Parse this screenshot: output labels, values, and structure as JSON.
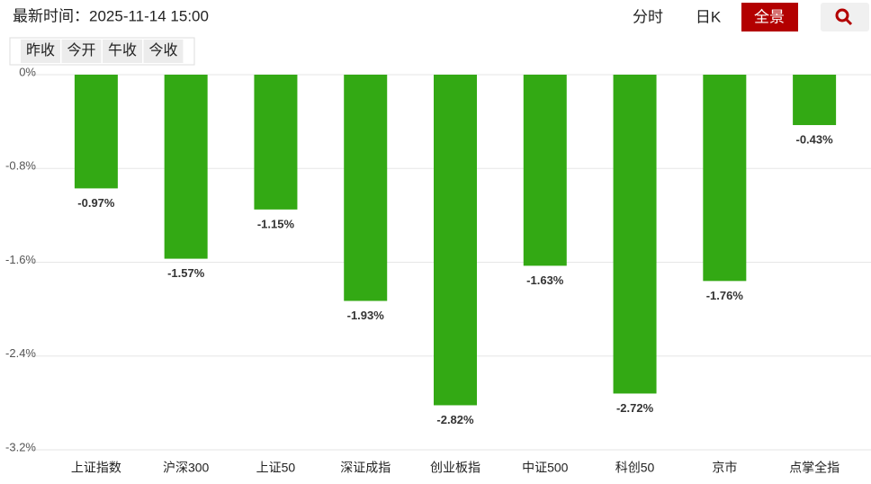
{
  "header": {
    "time": "最新时间：2025-11-14 15:00",
    "tabs": [
      "分时",
      "日K",
      "全景"
    ],
    "active_tab": 2,
    "sub_tabs": [
      "昨收",
      "今开",
      "午收",
      "今收"
    ]
  },
  "chart_data": {
    "type": "bar",
    "categories": [
      "上证指数",
      "沪深300",
      "上证50",
      "深证成指",
      "创业板指",
      "中证500",
      "科创50",
      "京市",
      "点掌全指"
    ],
    "values": [
      -0.97,
      -1.57,
      -1.15,
      -1.93,
      -2.82,
      -1.63,
      -2.72,
      -1.76,
      -0.43
    ],
    "value_labels": [
      "-0.97%",
      "-1.57%",
      "-1.15%",
      "-1.93%",
      "-2.82%",
      "-1.63%",
      "-2.72%",
      "-1.76%",
      "-0.43%"
    ],
    "color": "#33a914",
    "ylim": [
      -3.2,
      0
    ],
    "yticks": [
      {
        "value": 0,
        "label": "0%"
      },
      {
        "value": -0.8,
        "label": "-0.8%"
      },
      {
        "value": -1.6,
        "label": "-1.6%"
      },
      {
        "value": -2.4,
        "label": "-2.4%"
      },
      {
        "value": -3.2,
        "label": "-3.2%"
      }
    ],
    "grid": true
  }
}
